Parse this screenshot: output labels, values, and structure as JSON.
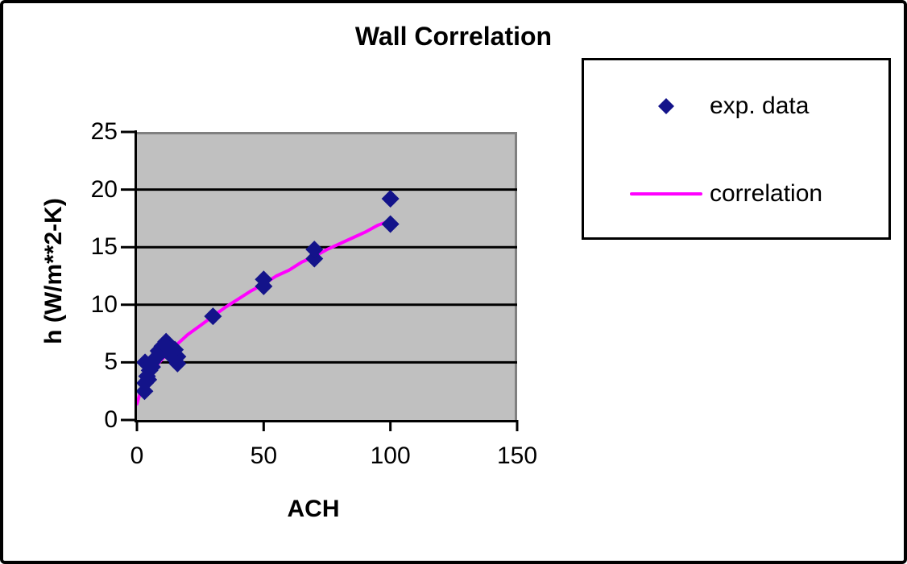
{
  "figure": {
    "background": "#FFFFFF",
    "border_color": "#000000"
  },
  "chart_data": {
    "type": "scatter",
    "title": "Wall Correlation",
    "xlabel": "ACH",
    "ylabel": "h (W/m**2-K)",
    "xlim": [
      0,
      150
    ],
    "ylim": [
      0,
      25
    ],
    "xticks": [
      0,
      50,
      100,
      150
    ],
    "yticks": [
      0,
      5,
      10,
      15,
      20,
      25
    ],
    "grid": "horizontal-black",
    "plot_background": "#C0C0C0",
    "plot_border_color": "#808080",
    "axis_color": "#000000",
    "legend": {
      "position": "top-right",
      "border_color": "#000000",
      "background": "#FFFFFF",
      "entries": [
        {
          "label": "exp. data",
          "marker": "diamond",
          "color": "#13138A"
        },
        {
          "label": "correlation",
          "marker": "line",
          "color": "#FF00FF"
        }
      ]
    },
    "series": [
      {
        "name": "exp. data",
        "type": "scatter",
        "marker": "diamond",
        "color": "#13138A",
        "points": [
          [
            3,
            2.5
          ],
          [
            3.2,
            3.2
          ],
          [
            4,
            3.8
          ],
          [
            4.5,
            3.5
          ],
          [
            5,
            4.3
          ],
          [
            3.2,
            5.0
          ],
          [
            6,
            4.6
          ],
          [
            6,
            5.0
          ],
          [
            7.5,
            5.4
          ],
          [
            8.5,
            6.0
          ],
          [
            9,
            5.8
          ],
          [
            10,
            6.4
          ],
          [
            11.5,
            6.8
          ],
          [
            12,
            6.3
          ],
          [
            13,
            5.7
          ],
          [
            15,
            6.1
          ],
          [
            16,
            5.5
          ],
          [
            16,
            4.9
          ],
          [
            30,
            9.0
          ],
          [
            50,
            11.6
          ],
          [
            50,
            12.2
          ],
          [
            70,
            14.0
          ],
          [
            70,
            14.8
          ],
          [
            100,
            17.0
          ],
          [
            100,
            19.2
          ]
        ]
      },
      {
        "name": "correlation",
        "type": "line",
        "color": "#FF00FF",
        "points": [
          [
            0,
            1.4
          ],
          [
            2,
            2.9
          ],
          [
            5,
            4.0
          ],
          [
            10,
            5.3
          ],
          [
            15,
            6.4
          ],
          [
            20,
            7.4
          ],
          [
            25,
            8.2
          ],
          [
            30,
            9.0
          ],
          [
            35,
            9.8
          ],
          [
            40,
            10.5
          ],
          [
            45,
            11.2
          ],
          [
            50,
            11.8
          ],
          [
            55,
            12.5
          ],
          [
            60,
            13.0
          ],
          [
            65,
            13.7
          ],
          [
            70,
            14.2
          ],
          [
            75,
            14.8
          ],
          [
            80,
            15.3
          ],
          [
            85,
            15.8
          ],
          [
            90,
            16.3
          ],
          [
            95,
            16.9
          ],
          [
            100,
            17.3
          ]
        ]
      }
    ]
  }
}
